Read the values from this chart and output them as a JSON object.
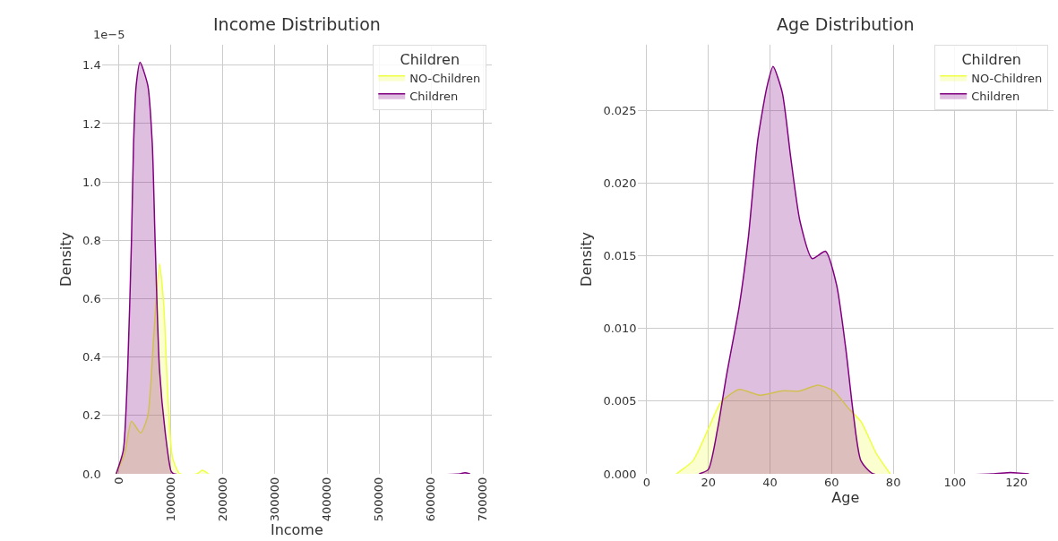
{
  "chart_data": [
    {
      "type": "area",
      "title": "Income Distribution",
      "xlabel": "Income",
      "ylabel": "Density",
      "legend_title": "Children",
      "legend": "top right",
      "grid": true,
      "annotations": [
        "1e−5"
      ],
      "xlim": [
        -33000,
        717000
      ],
      "xticks": [
        0,
        100000,
        200000,
        300000,
        400000,
        500000,
        600000,
        700000
      ],
      "ylim": [
        0,
        1.47
      ],
      "yticks": [
        {
          "value": 0,
          "label": "0.0"
        },
        0.2,
        0.4,
        0.6,
        0.8,
        {
          "value": 1,
          "label": "1.0"
        },
        1.2,
        1.4
      ],
      "series": [
        {
          "name": "NO-Children",
          "color": "#eeff44",
          "x": [
            -5500,
            11000,
            24000,
            41700,
            55500,
            66700,
            77800,
            86000,
            94400,
            103000,
            117000,
            150000,
            160000,
            172000
          ],
          "values": [
            0,
            0.07,
            0.18,
            0.14,
            0.2,
            0.47,
            0.72,
            0.58,
            0.25,
            0.055,
            0,
            0,
            0.012,
            0
          ]
        },
        {
          "name": "Children",
          "color": "#800080",
          "x": [
            -5500,
            8300,
            16700,
            24000,
            28000,
            33000,
            40500,
            55500,
            64000,
            69400,
            77800,
            89000,
            100000,
            105500,
            655000,
            665000,
            675000
          ],
          "values": [
            0,
            0.08,
            0.36,
            0.8,
            1.13,
            1.33,
            1.41,
            1.33,
            1.13,
            0.8,
            0.36,
            0.14,
            0.01,
            0,
            0,
            0.004,
            0
          ]
        }
      ]
    },
    {
      "type": "area",
      "title": "Age Distribution",
      "xlabel": "Age",
      "ylabel": "Density",
      "legend_title": "Children",
      "legend": "top right",
      "grid": true,
      "xlim": [
        -3,
        132
      ],
      "xticks": [
        0,
        20,
        40,
        60,
        80,
        100,
        120
      ],
      "ylim": [
        0,
        0.0295
      ],
      "yticks": [
        {
          "value": 0,
          "label": "0.000"
        },
        0.005,
        {
          "value": 0.01,
          "label": "0.010"
        },
        0.015,
        {
          "value": 0.02,
          "label": "0.020"
        },
        0.025
      ],
      "series": [
        {
          "name": "NO-Children",
          "color": "#eeff44",
          "x": [
            9.6,
            15,
            20,
            24,
            30,
            36.8,
            43.8,
            49.7,
            55.6,
            60.6,
            65.5,
            69.5,
            74.5,
            79
          ],
          "values": [
            0,
            0.0009,
            0.0031,
            0.0049,
            0.0058,
            0.0054,
            0.0057,
            0.0057,
            0.0061,
            0.0057,
            0.0045,
            0.0036,
            0.0014,
            0
          ]
        },
        {
          "name": "Children",
          "color": "#800080",
          "x": [
            17,
            20,
            23,
            26,
            30,
            33,
            36,
            39,
            41,
            44,
            46.7,
            49.7,
            53.7,
            58,
            61.6,
            64.6,
            67,
            69.5,
            73.5,
            112,
            118,
            124
          ],
          "values": [
            0,
            0.0003,
            0.0031,
            0.0069,
            0.0115,
            0.0163,
            0.0229,
            0.0266,
            0.028,
            0.0262,
            0.0218,
            0.0174,
            0.0148,
            0.0153,
            0.013,
            0.0086,
            0.0042,
            0.0009,
            0,
            0,
            0.0001,
            0
          ]
        }
      ]
    }
  ]
}
